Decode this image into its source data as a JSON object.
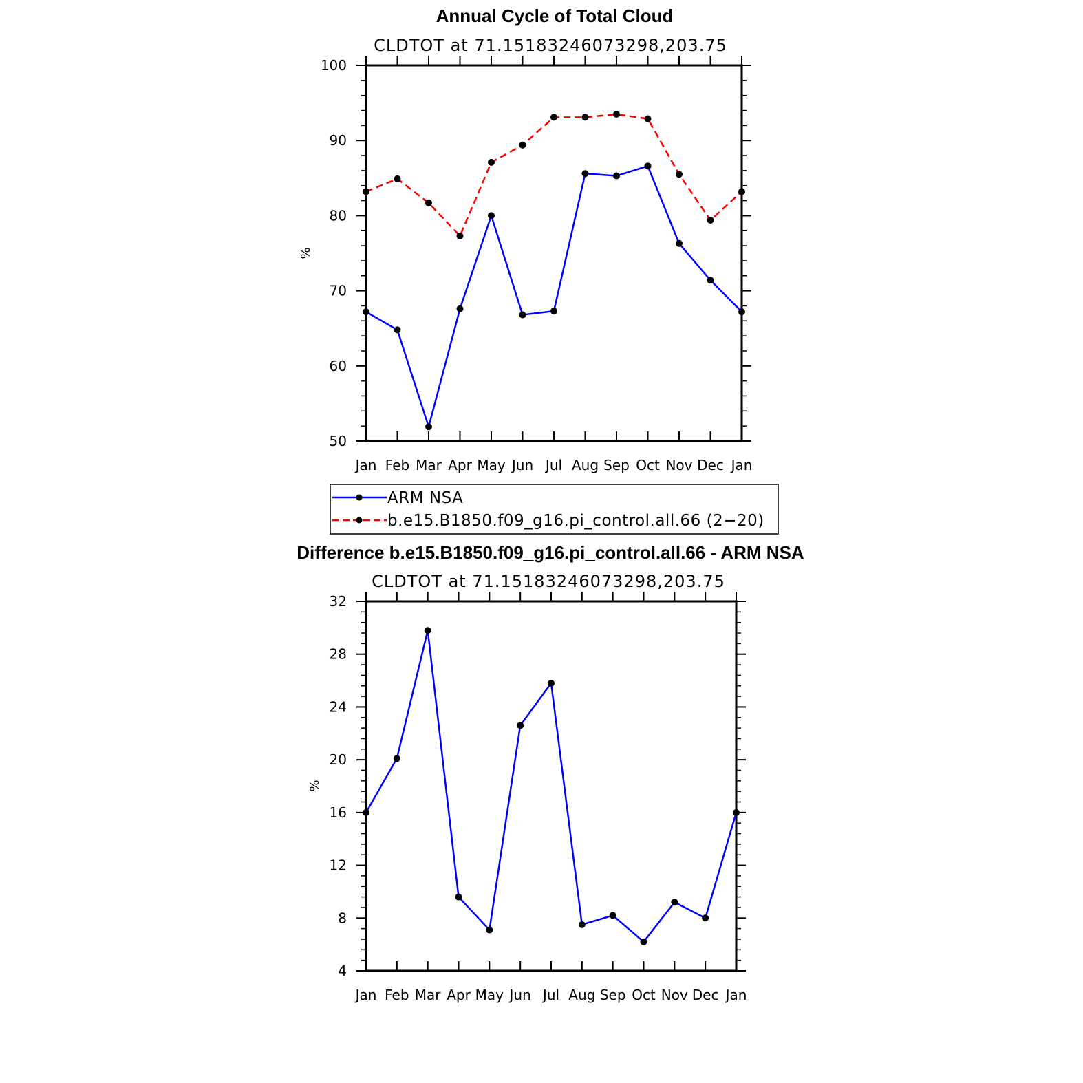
{
  "chart_data": [
    {
      "type": "line",
      "title": "Annual Cycle of Total Cloud",
      "subtitle": "CLDTOT at 71.15183246073298,203.75",
      "ylabel": "%",
      "xlabel": "",
      "categories": [
        "Jan",
        "Feb",
        "Mar",
        "Apr",
        "May",
        "Jun",
        "Jul",
        "Aug",
        "Sep",
        "Oct",
        "Nov",
        "Dec",
        "Jan"
      ],
      "ylim": [
        50,
        100
      ],
      "yticks": [
        "50",
        "60",
        "70",
        "80",
        "90",
        "100"
      ],
      "grid": false,
      "legend_position": "bottom",
      "series": [
        {
          "name": "ARM NSA",
          "color": "#0000ff",
          "dash": "solid",
          "values": [
            67.2,
            64.8,
            51.9,
            67.6,
            80.0,
            66.8,
            67.3,
            85.6,
            85.3,
            86.6,
            76.3,
            71.4,
            67.2
          ]
        },
        {
          "name": "b.e15.B1850.f09_g16.pi_control.all.66 (2−20)",
          "color": "#ff0000",
          "dash": "dashed",
          "values": [
            83.2,
            84.9,
            81.7,
            77.3,
            87.1,
            89.4,
            93.1,
            93.1,
            93.5,
            92.9,
            85.5,
            79.4,
            83.2
          ]
        }
      ]
    },
    {
      "type": "line",
      "title": "Difference b.e15.B1850.f09_g16.pi_control.all.66 - ARM NSA",
      "subtitle": "CLDTOT at 71.15183246073298,203.75",
      "ylabel": "%",
      "xlabel": "",
      "categories": [
        "Jan",
        "Feb",
        "Mar",
        "Apr",
        "May",
        "Jun",
        "Jul",
        "Aug",
        "Sep",
        "Oct",
        "Nov",
        "Dec",
        "Jan"
      ],
      "ylim": [
        4,
        32
      ],
      "yticks": [
        "4",
        "8",
        "12",
        "16",
        "20",
        "24",
        "28",
        "32"
      ],
      "grid": false,
      "series": [
        {
          "color": "#0000ff",
          "dash": "solid",
          "values": [
            16.0,
            20.1,
            29.8,
            9.6,
            7.1,
            22.6,
            25.8,
            7.5,
            8.2,
            6.2,
            9.2,
            8.0,
            16.0
          ]
        }
      ]
    }
  ]
}
